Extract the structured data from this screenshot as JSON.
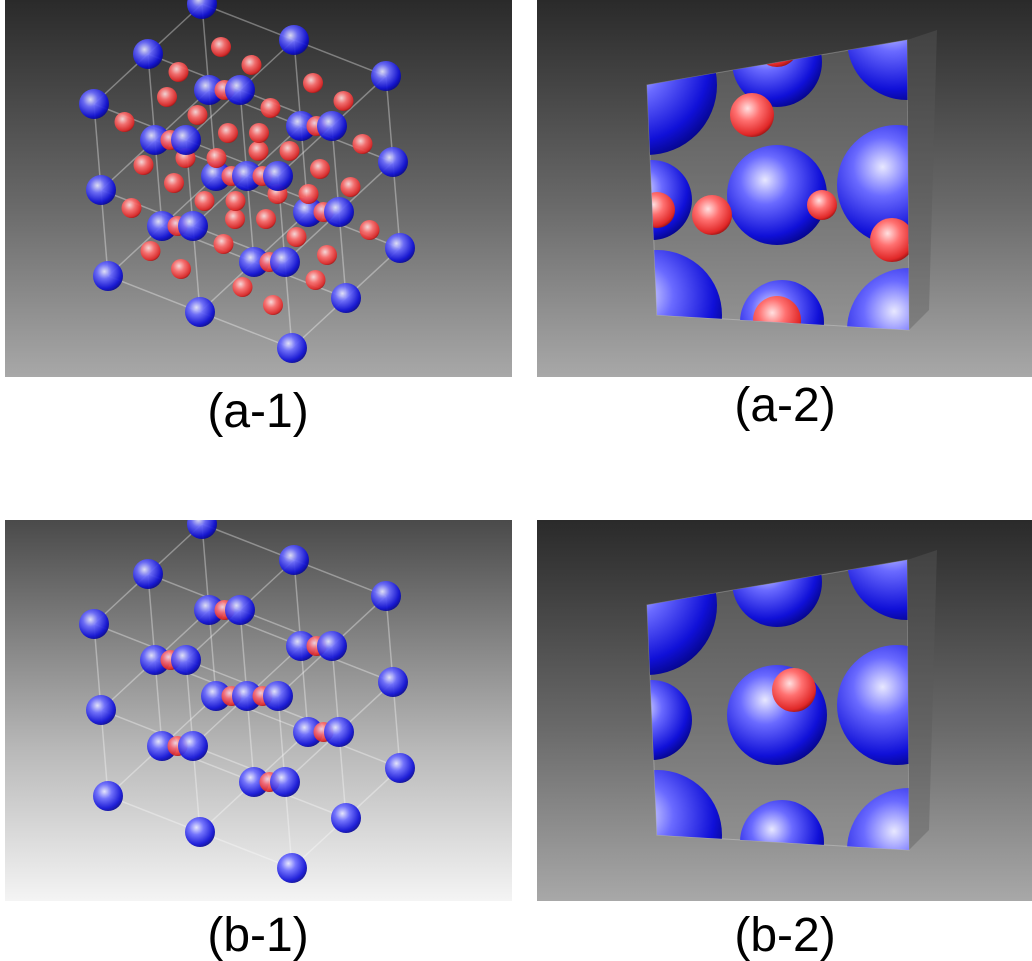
{
  "panels": [
    {
      "label": "(a-1)"
    },
    {
      "label": "(a-2)"
    },
    {
      "label": "(b-1)"
    },
    {
      "label": "(b-2)"
    }
  ]
}
